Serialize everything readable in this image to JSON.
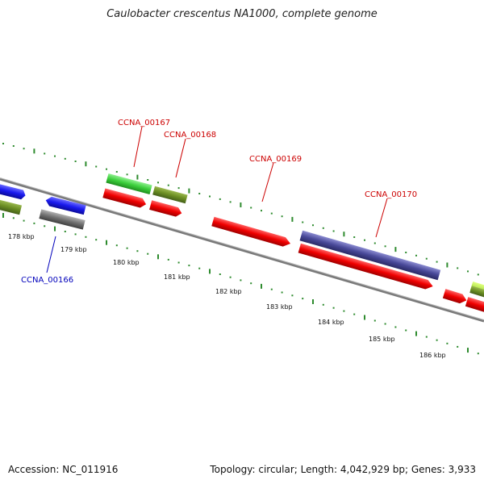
{
  "title": "Caulobacter crescentus NA1000, complete genome",
  "footer": {
    "accession": "Accession: NC_011916",
    "topology": "Topology: circular; Length: 4,042,929 bp; Genes: 3,933"
  },
  "colors": {
    "backbone": "#7a7a7a",
    "tick": "#2e8b2e",
    "cds_red": "#f00000",
    "cds_green": "#3ccf3c",
    "cds_olive": "#6b8e23",
    "cds_blue": "#1a1aee",
    "cds_gray": "#707070",
    "cds_purple": "#484898",
    "label_red": "#cc0000",
    "label_blue": "#0000bb"
  },
  "scale": {
    "ticks_kbp": [
      "178 kbp",
      "179 kbp",
      "180 kbp",
      "181 kbp",
      "182 kbp",
      "183 kbp",
      "184 kbp",
      "185 kbp",
      "186 kbp"
    ]
  },
  "gene_labels": {
    "ccna_00166": "CCNA_00166",
    "ccna_00167": "CCNA_00167",
    "ccna_00168": "CCNA_00168",
    "ccna_00169": "CCNA_00169",
    "ccna_00170": "CCNA_00170"
  }
}
